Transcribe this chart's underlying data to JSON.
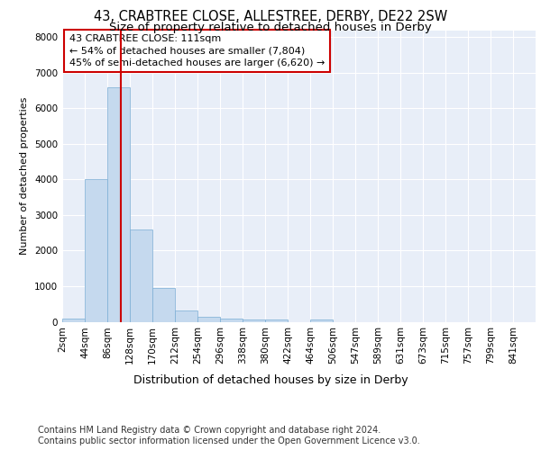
{
  "title1": "43, CRABTREE CLOSE, ALLESTREE, DERBY, DE22 2SW",
  "title2": "Size of property relative to detached houses in Derby",
  "xlabel": "Distribution of detached houses by size in Derby",
  "ylabel": "Number of detached properties",
  "bin_labels": [
    "2sqm",
    "44sqm",
    "86sqm",
    "128sqm",
    "170sqm",
    "212sqm",
    "254sqm",
    "296sqm",
    "338sqm",
    "380sqm",
    "422sqm",
    "464sqm",
    "506sqm",
    "547sqm",
    "589sqm",
    "631sqm",
    "673sqm",
    "715sqm",
    "757sqm",
    "799sqm",
    "841sqm"
  ],
  "bar_values": [
    80,
    4000,
    6600,
    2600,
    950,
    320,
    130,
    100,
    70,
    60,
    0,
    70,
    0,
    0,
    0,
    0,
    0,
    0,
    0,
    0,
    0
  ],
  "bar_color": "#c5d9ee",
  "bar_edge_color": "#7aadd4",
  "vline_x": 111,
  "vline_color": "#cc0000",
  "annotation_text": "43 CRABTREE CLOSE: 111sqm\n← 54% of detached houses are smaller (7,804)\n45% of semi-detached houses are larger (6,620) →",
  "annotation_box_color": "#ffffff",
  "annotation_box_edge": "#cc0000",
  "ylim": [
    0,
    8200
  ],
  "yticks": [
    0,
    1000,
    2000,
    3000,
    4000,
    5000,
    6000,
    7000,
    8000
  ],
  "background_color": "#e8eef8",
  "footer_text": "Contains HM Land Registry data © Crown copyright and database right 2024.\nContains public sector information licensed under the Open Government Licence v3.0.",
  "title1_fontsize": 10.5,
  "title2_fontsize": 9.5,
  "annotation_fontsize": 8,
  "footer_fontsize": 7,
  "xlabel_fontsize": 9,
  "ylabel_fontsize": 8,
  "tick_fontsize": 7.5,
  "bin_width": 42
}
